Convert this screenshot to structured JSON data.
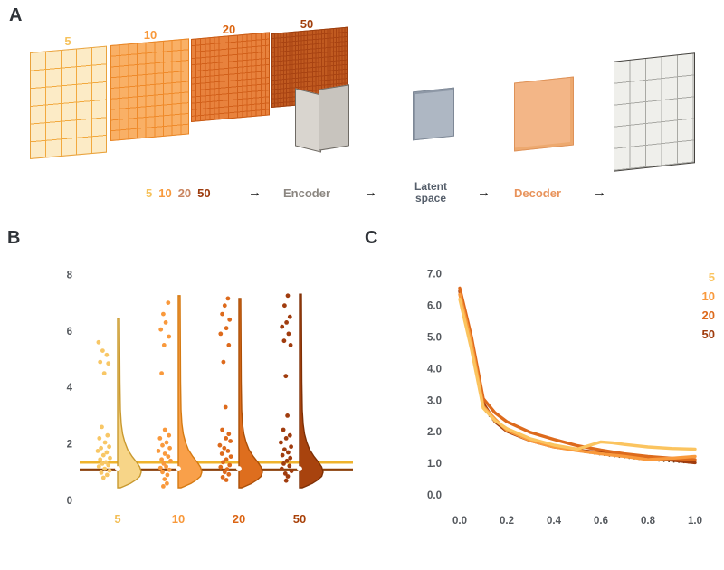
{
  "figure": {
    "panel_a_label": "A",
    "panel_b_label": "B",
    "panel_c_label": "C"
  },
  "panel_a": {
    "grids": [
      {
        "label": "5",
        "label_color": "#F6C25C",
        "fill": "#FCEBC6",
        "line": "#F2A93E",
        "border": "#E9A23C",
        "cols": 5,
        "rows": 6
      },
      {
        "label": "10",
        "label_color": "#F8993B",
        "fill": "#F9B066",
        "line": "#EF8A2A",
        "border": "#E88525",
        "cols": 9,
        "rows": 9
      },
      {
        "label": "20",
        "label_color": "#DC6612",
        "fill": "#E8823D",
        "line": "#D2601A",
        "border": "#C85A14",
        "cols": 17,
        "rows": 13
      },
      {
        "label": "50",
        "label_color": "#A13E0B",
        "fill": "#C05A20",
        "line": "#A84312",
        "border": "#9C3E0E",
        "cols": 26,
        "rows": 16
      }
    ],
    "flow": {
      "sizes": [
        {
          "text": "5",
          "color": "#F6C25C"
        },
        {
          "text": "10",
          "color": "#F8993B"
        },
        {
          "text": "20",
          "color": "#C9845F"
        },
        {
          "text": "50",
          "color": "#9C3A0C"
        }
      ],
      "arrow": "→",
      "encoder_label": "Encoder",
      "encoder_color": "#8B8680",
      "latent_label_line1": "Latent",
      "latent_label_line2": "space",
      "latent_color": "#565F6B",
      "decoder_label": "Decoder",
      "decoder_color": "#E8935B"
    }
  },
  "chart_data": [
    {
      "id": "panel-b",
      "type": "scatter",
      "subtype": "half_violin_with_jittered_points",
      "title": "",
      "xlabel": "",
      "ylabel": "",
      "categories": [
        "5",
        "10",
        "20",
        "50"
      ],
      "category_colors": [
        "#F3BE56",
        "#F8993B",
        "#DB6413",
        "#A84109"
      ],
      "yticks": [
        0,
        2,
        4,
        6,
        8
      ],
      "ylim": [
        0,
        8.3
      ],
      "grid": false,
      "reference_lines": [
        {
          "y": 1.35,
          "color": "#EFB32C",
          "width": 3.2
        },
        {
          "y": 1.08,
          "color": "#8A3E08",
          "width": 3.2
        }
      ],
      "median_marker_y": 1.12,
      "profile_widths": [
        [
          4.2,
          2.5
        ],
        [
          3.2,
          3
        ],
        [
          2.7,
          4
        ],
        [
          2.35,
          5.5
        ],
        [
          2.05,
          8
        ],
        [
          1.8,
          11
        ],
        [
          1.55,
          16
        ],
        [
          1.35,
          21
        ],
        [
          1.18,
          24.5
        ],
        [
          1.0,
          26
        ],
        [
          0.85,
          24.5
        ],
        [
          0.72,
          20
        ],
        [
          0.6,
          14
        ],
        [
          0.5,
          7
        ],
        [
          0.45,
          3
        ]
      ],
      "groups": [
        {
          "label": "5",
          "violin_top": 6.45,
          "violin_fill": "#F7D588",
          "violin_stroke": "#C9992F",
          "point_color": "#F8C766",
          "points": [
            [
              -0.9,
              5.6
            ],
            [
              -0.4,
              5.3
            ],
            [
              0.1,
              5.15
            ],
            [
              -0.7,
              4.9
            ],
            [
              0.3,
              4.85
            ],
            [
              -0.2,
              4.5
            ],
            [
              -0.5,
              2.6
            ],
            [
              0.2,
              2.3
            ],
            [
              -0.8,
              2.2
            ],
            [
              -0.1,
              2.05
            ],
            [
              0.4,
              1.9
            ],
            [
              -0.6,
              1.85
            ],
            [
              -1,
              1.75
            ],
            [
              0.1,
              1.7
            ],
            [
              -0.3,
              1.6
            ],
            [
              0.5,
              1.5
            ],
            [
              -0.7,
              1.45
            ],
            [
              0,
              1.35
            ],
            [
              -0.45,
              1.3
            ],
            [
              0.3,
              1.25
            ],
            [
              -0.85,
              1.2
            ],
            [
              -0.15,
              1.12
            ],
            [
              0.45,
              1.05
            ],
            [
              -0.55,
              0.98
            ],
            [
              0.15,
              0.9
            ],
            [
              -0.3,
              0.8
            ]
          ]
        },
        {
          "label": "10",
          "violin_top": 7.25,
          "violin_fill": "#F9A04A",
          "violin_stroke": "#D57A12",
          "point_color": "#F9993C",
          "points": [
            [
              0.2,
              7.0
            ],
            [
              -0.4,
              6.6
            ],
            [
              -0.1,
              6.3
            ],
            [
              -0.7,
              6.05
            ],
            [
              0.3,
              5.8
            ],
            [
              -0.3,
              5.5
            ],
            [
              -0.6,
              4.5
            ],
            [
              -0.2,
              2.5
            ],
            [
              0.3,
              2.3
            ],
            [
              -0.8,
              2.2
            ],
            [
              0,
              2.05
            ],
            [
              -0.5,
              1.95
            ],
            [
              0.4,
              1.85
            ],
            [
              -1,
              1.75
            ],
            [
              -0.2,
              1.65
            ],
            [
              0.2,
              1.55
            ],
            [
              -0.6,
              1.45
            ],
            [
              0.5,
              1.4
            ],
            [
              -0.35,
              1.3
            ],
            [
              -0.05,
              1.2
            ],
            [
              -0.75,
              1.15
            ],
            [
              0.35,
              1.08
            ],
            [
              -0.5,
              1.0
            ],
            [
              0.1,
              0.9
            ],
            [
              -0.25,
              0.75
            ],
            [
              0.05,
              0.6
            ],
            [
              -0.4,
              0.5
            ]
          ]
        },
        {
          "label": "20",
          "violin_top": 7.15,
          "violin_fill": "#DE6E1E",
          "violin_stroke": "#AC4F07",
          "point_color": "#DD6A1C",
          "points": [
            [
              0.1,
              7.15
            ],
            [
              -0.3,
              6.9
            ],
            [
              -0.6,
              6.6
            ],
            [
              0.3,
              6.4
            ],
            [
              -0.1,
              6.1
            ],
            [
              -0.8,
              5.9
            ],
            [
              0.2,
              5.5
            ],
            [
              -0.45,
              4.9
            ],
            [
              -0.2,
              3.3
            ],
            [
              -0.6,
              2.5
            ],
            [
              0.2,
              2.35
            ],
            [
              -0.15,
              2.2
            ],
            [
              0.4,
              2.1
            ],
            [
              -0.9,
              1.95
            ],
            [
              -0.35,
              1.85
            ],
            [
              0.1,
              1.75
            ],
            [
              -0.65,
              1.65
            ],
            [
              0.45,
              1.55
            ],
            [
              -0.1,
              1.45
            ],
            [
              -0.5,
              1.35
            ],
            [
              0.3,
              1.25
            ],
            [
              -0.8,
              1.18
            ],
            [
              0,
              1.1
            ],
            [
              -0.3,
              1.0
            ],
            [
              0.2,
              0.92
            ],
            [
              -0.55,
              0.82
            ],
            [
              -0.1,
              0.72
            ]
          ]
        },
        {
          "label": "50",
          "violin_top": 7.3,
          "violin_fill": "#A8430E",
          "violin_stroke": "#7E2F05",
          "point_color": "#A03C0E",
          "points": [
            [
              0,
              7.25
            ],
            [
              -0.4,
              6.9
            ],
            [
              0.25,
              6.5
            ],
            [
              -0.15,
              6.3
            ],
            [
              -0.7,
              6.15
            ],
            [
              0.1,
              5.9
            ],
            [
              -0.45,
              5.65
            ],
            [
              0.35,
              5.5
            ],
            [
              -0.25,
              4.4
            ],
            [
              -0.05,
              3.0
            ],
            [
              -0.55,
              2.5
            ],
            [
              0.25,
              2.3
            ],
            [
              -0.2,
              2.2
            ],
            [
              -0.85,
              2.05
            ],
            [
              0.4,
              1.9
            ],
            [
              -0.4,
              1.8
            ],
            [
              0.05,
              1.7
            ],
            [
              -0.65,
              1.6
            ],
            [
              0.3,
              1.5
            ],
            [
              -0.1,
              1.4
            ],
            [
              -0.5,
              1.3
            ],
            [
              0.2,
              1.22
            ],
            [
              -0.75,
              1.12
            ],
            [
              0.45,
              1.04
            ],
            [
              -0.3,
              0.95
            ],
            [
              0,
              0.85
            ],
            [
              -0.2,
              0.7
            ]
          ]
        }
      ]
    },
    {
      "id": "panel-c",
      "type": "line",
      "title": "",
      "xlabel": "",
      "ylabel": "",
      "x": [
        0.0,
        0.05,
        0.1,
        0.15,
        0.2,
        0.3,
        0.4,
        0.5,
        0.6,
        0.65,
        0.7,
        0.8,
        0.9,
        1.0
      ],
      "series": [
        {
          "name": "5",
          "color": "#FBC45F",
          "values": [
            6.2,
            4.6,
            2.75,
            2.35,
            2.1,
            1.78,
            1.58,
            1.45,
            1.68,
            1.65,
            1.6,
            1.52,
            1.47,
            1.45
          ]
        },
        {
          "name": "10",
          "color": "#F9993C",
          "values": [
            6.35,
            4.8,
            2.8,
            2.4,
            2.05,
            1.72,
            1.52,
            1.4,
            1.3,
            1.26,
            1.22,
            1.12,
            1.16,
            1.22
          ]
        },
        {
          "name": "20",
          "color": "#DD6A1C",
          "values": [
            6.55,
            5.0,
            3.05,
            2.6,
            2.32,
            1.98,
            1.76,
            1.56,
            1.42,
            1.36,
            1.3,
            1.22,
            1.16,
            1.12
          ]
        },
        {
          "name": "50",
          "color": "#A03C0E",
          "values": [
            6.45,
            4.9,
            2.9,
            2.32,
            2.02,
            1.72,
            1.52,
            1.42,
            1.33,
            1.28,
            1.24,
            1.18,
            1.1,
            1.02
          ]
        }
      ],
      "dotted_reference": {
        "color": "#4A3318",
        "values": [
          6.3,
          4.7,
          2.7,
          2.3,
          2.0,
          1.7,
          1.5,
          1.38,
          1.27,
          1.22,
          1.18,
          1.1,
          1.05,
          1.0
        ]
      },
      "xticks": [
        "0.0",
        "0.2",
        "0.4",
        "0.6",
        "0.8",
        "1.0"
      ],
      "yticks": [
        "0.0",
        "1.0",
        "2.0",
        "3.0",
        "4.0",
        "5.0",
        "6.0",
        "7.0"
      ],
      "xlim": [
        -0.03,
        1.05
      ],
      "ylim": [
        0,
        7.3
      ],
      "grid": false,
      "legend_position": "top-right",
      "legend": [
        {
          "text": "5",
          "color": "#FBC45F"
        },
        {
          "text": "10",
          "color": "#F9993C"
        },
        {
          "text": "20",
          "color": "#DD6A1C"
        },
        {
          "text": "50",
          "color": "#A03C0E"
        }
      ]
    }
  ]
}
